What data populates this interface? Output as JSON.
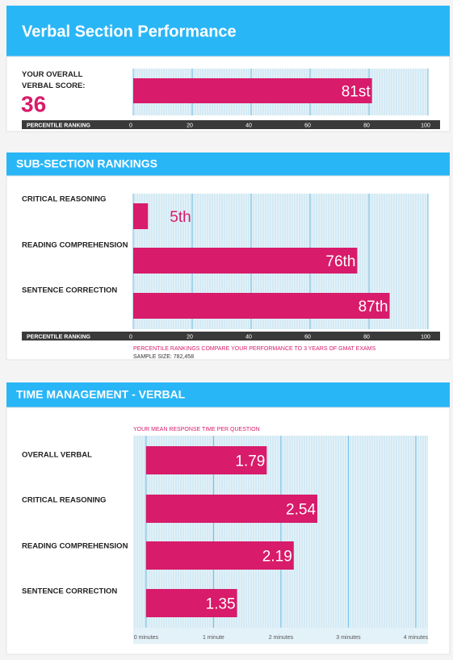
{
  "header": {
    "title": "Verbal Section Performance"
  },
  "chart_data": [
    {
      "type": "bar",
      "orientation": "horizontal",
      "categories": [
        "YOUR OVERALL VERBAL SCORE:"
      ],
      "score": 36,
      "values": [
        81
      ],
      "value_labels": [
        "81st"
      ],
      "color": "#d81b6a",
      "xlabel": "PERCENTILE RANKING",
      "xlim": [
        0,
        100
      ],
      "xticks": [
        0,
        20,
        40,
        60,
        80,
        100
      ],
      "grid": true
    },
    {
      "type": "bar",
      "orientation": "horizontal",
      "title": "SUB-SECTION RANKINGS",
      "categories": [
        "CRITICAL REASONING",
        "READING COMPREHENSION",
        "SENTENCE CORRECTION"
      ],
      "values": [
        5,
        76,
        87
      ],
      "value_labels": [
        "5th",
        "76th",
        "87th"
      ],
      "color": "#d81b6a",
      "xlabel": "PERCENTILE RANKING",
      "xlim": [
        0,
        100
      ],
      "xticks": [
        0,
        20,
        40,
        60,
        80,
        100
      ],
      "grid": true,
      "notes": [
        "PERCENTILE RANKINGS COMPARE YOUR PERFORMANCE TO 3 YEARS OF GMAT EXAMS",
        "SAMPLE SIZE: 782,458"
      ]
    },
    {
      "type": "bar",
      "orientation": "horizontal",
      "title": "TIME MANAGEMENT - VERBAL",
      "subtitle": "YOUR MEAN RESPONSE TIME PER QUESTION",
      "categories": [
        "OVERALL VERBAL",
        "CRITICAL REASONING",
        "READING COMPREHENSION",
        "SENTENCE CORRECTION"
      ],
      "values": [
        1.79,
        2.54,
        2.19,
        1.35
      ],
      "color": "#d81b6a",
      "xlim": [
        -0.19,
        4.18
      ],
      "xticks": [
        {
          "value": 0,
          "label": "0 minutes"
        },
        {
          "value": 1,
          "label": "1 minute"
        },
        {
          "value": 2,
          "label": "2 minutes"
        },
        {
          "value": 3,
          "label": "3 minutes"
        },
        {
          "value": 4,
          "label": "4 minutes"
        }
      ],
      "grid": true
    }
  ]
}
